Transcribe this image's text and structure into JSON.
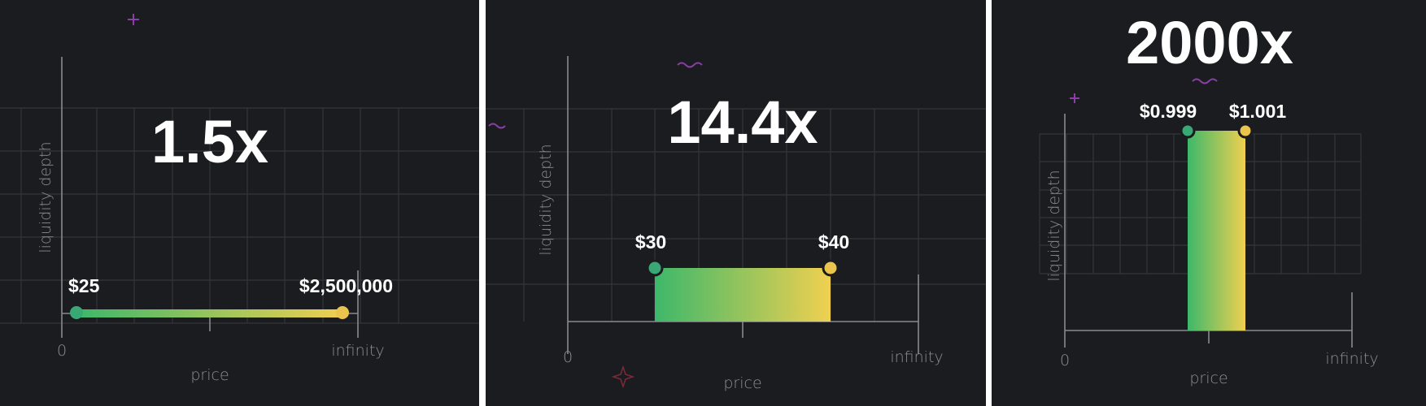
{
  "colors": {
    "background": "#1b1c20",
    "range_start": "#3db86a",
    "range_end": "#f0d050",
    "divider": "#ffffff"
  },
  "panels": [
    {
      "multiplier": "1.5x",
      "low_price": "$25",
      "high_price": "$2,500,000",
      "y_axis_label": "liquidity depth",
      "x_axis_label": "price",
      "x_min_label": "0",
      "x_max_label": "infinity"
    },
    {
      "multiplier": "14.4x",
      "low_price": "$30",
      "high_price": "$40",
      "y_axis_label": "liquidity depth",
      "x_axis_label": "price",
      "x_min_label": "0",
      "x_max_label": "infinity"
    },
    {
      "multiplier": "2000x",
      "low_price": "$0.999",
      "high_price": "$1.001",
      "y_axis_label": "liquidity depth",
      "x_axis_label": "price",
      "x_min_label": "0",
      "x_max_label": "infinity"
    }
  ]
}
